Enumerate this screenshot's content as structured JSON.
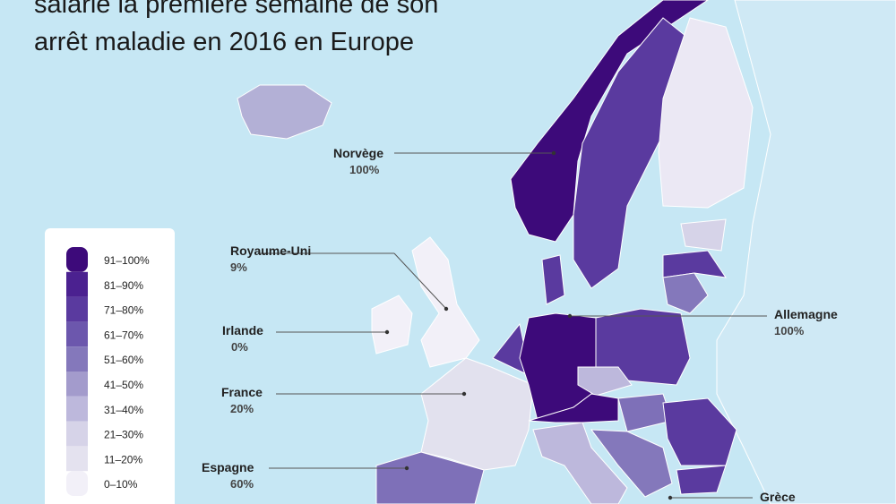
{
  "title_lines": [
    "salarié la première semaine de son",
    "arrêt maladie en 2016 en Europe"
  ],
  "legend": [
    {
      "label": "91–100%",
      "color": "#3d0a7a"
    },
    {
      "label": "81–90%",
      "color": "#4b2190"
    },
    {
      "label": "71–80%",
      "color": "#5a3a9f"
    },
    {
      "label": "61–70%",
      "color": "#6c57ad"
    },
    {
      "label": "51–60%",
      "color": "#8478bb"
    },
    {
      "label": "41–50%",
      "color": "#a39bcc"
    },
    {
      "label": "31–40%",
      "color": "#bdb8dc"
    },
    {
      "label": "21–30%",
      "color": "#d6d3e8"
    },
    {
      "label": "11–20%",
      "color": "#e4e2ef"
    },
    {
      "label": "0–10%",
      "color": "#f2f0f8"
    }
  ],
  "labels": [
    {
      "name": "Norvège",
      "value": "100%"
    },
    {
      "name": "Royaume-Uni",
      "value": "9%"
    },
    {
      "name": "Irlande",
      "value": "0%"
    },
    {
      "name": "France",
      "value": "20%"
    },
    {
      "name": "Espagne",
      "value": "60%"
    },
    {
      "name": "Allemagne",
      "value": "100%"
    },
    {
      "name": "Grèce"
    }
  ]
}
